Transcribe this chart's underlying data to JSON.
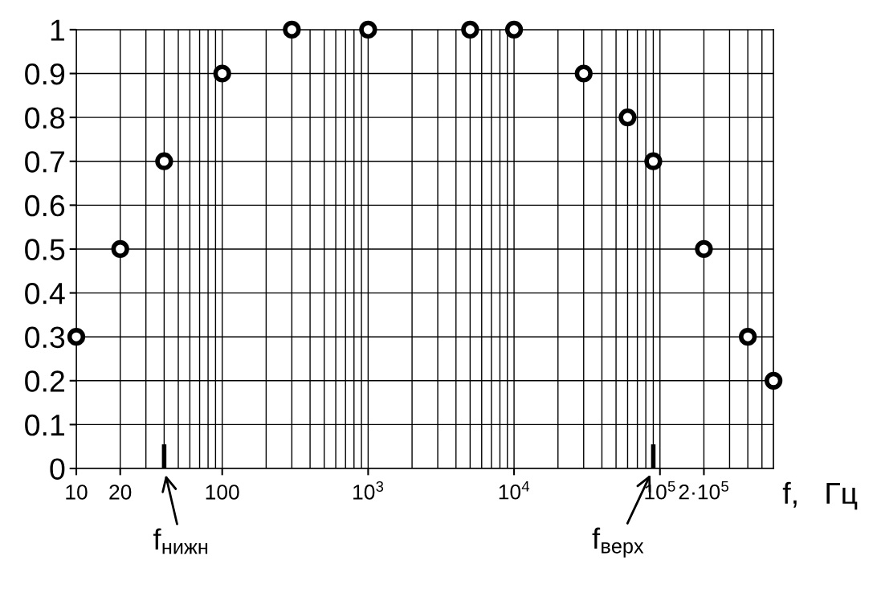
{
  "chart_data": {
    "type": "scatter",
    "x": [
      10,
      20,
      40,
      100,
      300,
      1000,
      5000,
      10000,
      30000,
      60000,
      90000,
      200000,
      400000,
      600000
    ],
    "series": [
      {
        "color": "#000000",
        "values": [
          0.3,
          0.5,
          0.7,
          0.9,
          1,
          1,
          1,
          1,
          0.9,
          0.8,
          0.7,
          0.5,
          0.3,
          0.2
        ]
      }
    ],
    "log": "x",
    "xlim": [
      10,
      600000
    ],
    "ylim": [
      0,
      1
    ],
    "xticks": [
      10,
      20,
      100,
      {
        "value": 1000,
        "label": "10$^{3}$"
      },
      {
        "value": 10000,
        "label": "10$^{4}$"
      },
      {
        "value": 100000,
        "label": "10$^{5}$"
      },
      {
        "value": 200000,
        "label": "2·10$^{5}$"
      }
    ],
    "yticks": [
      0,
      0.1,
      0.2,
      0.3,
      0.4,
      0.5,
      0.6,
      0.7,
      0.8,
      0.9,
      1
    ],
    "xlabel": "f,   Гц",
    "ref_lines": [
      {
        "axis": "x",
        "value": 40,
        "label": "f$_{нижн}$"
      },
      {
        "axis": "x",
        "value": 90000,
        "label": "f$_{верх}$"
      }
    ],
    "grid": true,
    "marker": "circle"
  }
}
